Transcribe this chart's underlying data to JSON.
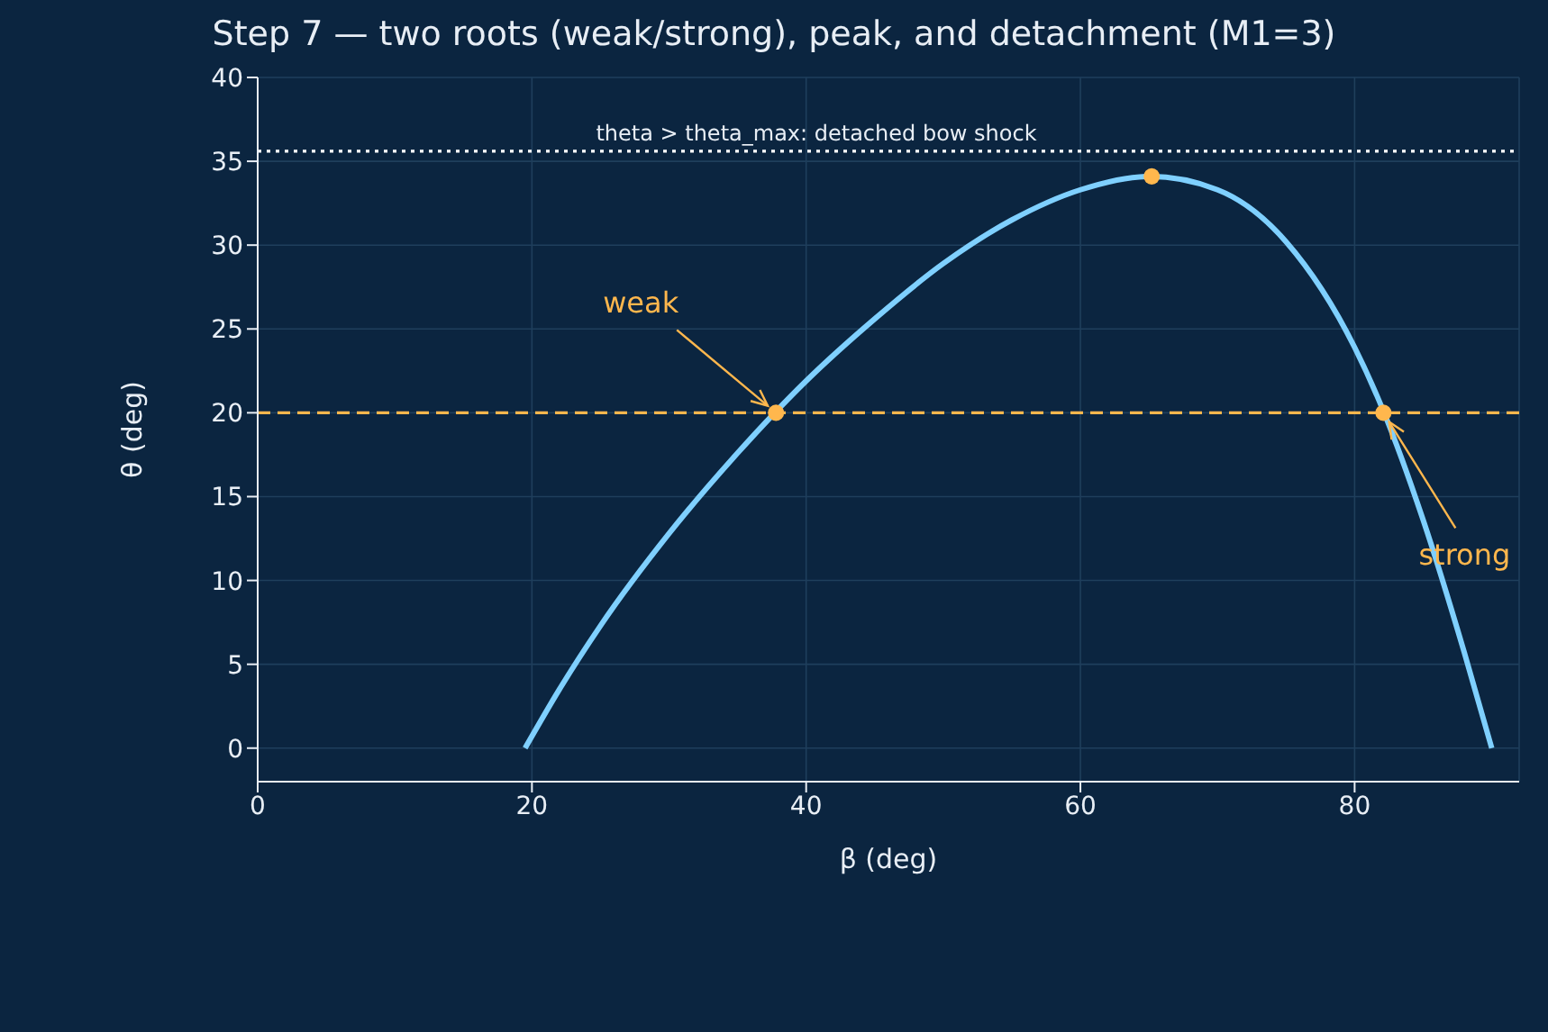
{
  "chart_data": {
    "type": "line",
    "title": "Step 7 — two roots (weak/strong), peak, and detachment (M1=3)",
    "xlabel": "β (deg)",
    "ylabel": "θ (deg)",
    "xlim": [
      0,
      92
    ],
    "xticks": [
      0,
      20,
      40,
      60,
      80
    ],
    "ylim": [
      -2,
      40
    ],
    "yticks": [
      0,
      5,
      10,
      15,
      20,
      25,
      30,
      35,
      40
    ],
    "grid": true,
    "series": [
      {
        "color": "#7fd0ff",
        "marker": "none",
        "x": [
          19.5,
          22,
          25,
          30,
          35,
          40,
          45,
          50,
          55,
          60,
          65,
          70,
          75,
          80,
          82,
          85,
          88,
          90
        ],
        "values": [
          0,
          3.5,
          7.3,
          12.8,
          17.6,
          21.9,
          25.6,
          28.9,
          31.5,
          33.3,
          34.1,
          33.3,
          30.2,
          23.9,
          20.3,
          13.6,
          5.7,
          0
        ]
      },
      {
        "type": "scatter",
        "color": "#ffb74d",
        "marker": "circle",
        "x": [
          37.8,
          82.1,
          65.2
        ],
        "values": [
          20,
          20,
          34.1
        ]
      }
    ],
    "ref_lines": [
      {
        "axis": "y",
        "value": 35.6,
        "label": "theta > theta_max: detached bow shock",
        "color": "#ffffff",
        "line_style": "dotted"
      },
      {
        "axis": "y",
        "value": 20,
        "label": null,
        "color": "#ffb74d",
        "line_style": "dashed"
      }
    ],
    "annotations": [
      {
        "text": "weak",
        "x": 37.8,
        "y": 20
      },
      {
        "text": "strong",
        "x": 82.1,
        "y": 20
      }
    ]
  }
}
